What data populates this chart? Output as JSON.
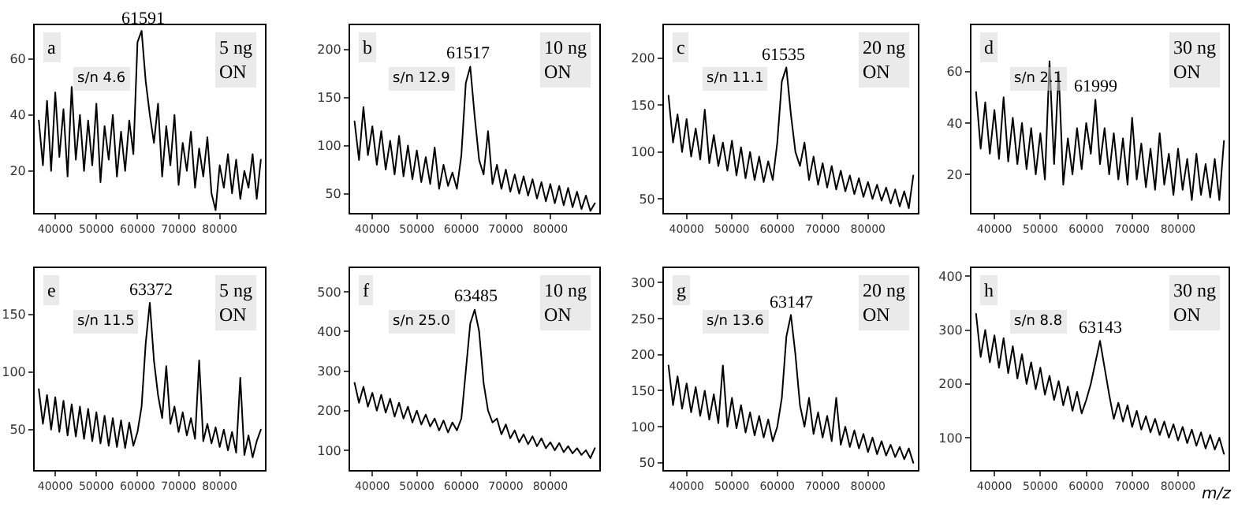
{
  "chart_data": [
    {
      "type": "line",
      "x": [
        36000,
        37000,
        38000,
        39000,
        40000,
        41000,
        42000,
        43000,
        44000,
        45000,
        46000,
        47000,
        48000,
        49000,
        50000,
        51000,
        52000,
        53000,
        54000,
        55000,
        56000,
        57000,
        58000,
        59000,
        60000,
        61000,
        62000,
        63000,
        64000,
        65000,
        66000,
        67000,
        68000,
        69000,
        70000,
        71000,
        72000,
        73000,
        74000,
        75000,
        76000,
        77000,
        78000,
        79000,
        80000,
        81000,
        82000,
        83000,
        84000,
        85000,
        86000,
        87000,
        88000,
        89000,
        90000
      ],
      "xlim": [
        35000,
        91000
      ],
      "xticks": [
        40000,
        50000,
        60000,
        70000,
        80000
      ],
      "ylim": [
        5,
        72
      ],
      "yticks": [
        20,
        40,
        60
      ],
      "series": [
        {
          "color": "#000000",
          "values": [
            38,
            22,
            45,
            20,
            48,
            25,
            42,
            18,
            50,
            24,
            40,
            20,
            38,
            22,
            44,
            16,
            36,
            24,
            40,
            18,
            34,
            20,
            38,
            26,
            66,
            70,
            52,
            40,
            30,
            44,
            18,
            36,
            22,
            40,
            15,
            30,
            20,
            34,
            14,
            28,
            18,
            32,
            12,
            6,
            22,
            14,
            26,
            12,
            24,
            10,
            20,
            14,
            26,
            10,
            24
          ]
        }
      ],
      "annotations": [
        "a",
        "s/n 4.6",
        "5 ng\nON",
        {
          "text": "61591",
          "x": 61591,
          "y": 70
        }
      ]
    },
    {
      "type": "line",
      "x": [
        36000,
        37000,
        38000,
        39000,
        40000,
        41000,
        42000,
        43000,
        44000,
        45000,
        46000,
        47000,
        48000,
        49000,
        50000,
        51000,
        52000,
        53000,
        54000,
        55000,
        56000,
        57000,
        58000,
        59000,
        60000,
        61000,
        62000,
        63000,
        64000,
        65000,
        66000,
        67000,
        68000,
        69000,
        70000,
        71000,
        72000,
        73000,
        74000,
        75000,
        76000,
        77000,
        78000,
        79000,
        80000,
        81000,
        82000,
        83000,
        84000,
        85000,
        86000,
        87000,
        88000,
        89000,
        90000
      ],
      "xlim": [
        35000,
        91000
      ],
      "xticks": [
        40000,
        50000,
        60000,
        70000,
        80000
      ],
      "ylim": [
        30,
        225
      ],
      "yticks": [
        50,
        100,
        150,
        200
      ],
      "series": [
        {
          "color": "#000000",
          "values": [
            125,
            85,
            140,
            90,
            120,
            80,
            115,
            75,
            105,
            70,
            110,
            68,
            100,
            65,
            95,
            62,
            88,
            60,
            98,
            55,
            80,
            58,
            72,
            55,
            90,
            165,
            182,
            130,
            85,
            70,
            115,
            60,
            80,
            55,
            75,
            52,
            70,
            50,
            68,
            48,
            65,
            45,
            62,
            42,
            60,
            40,
            58,
            38,
            56,
            36,
            52,
            34,
            48,
            32,
            40
          ]
        }
      ],
      "annotations": [
        "b",
        "s/n 12.9",
        "10 ng\nON",
        {
          "text": "61517",
          "x": 61517,
          "y": 182
        }
      ]
    },
    {
      "type": "line",
      "x": [
        36000,
        37000,
        38000,
        39000,
        40000,
        41000,
        42000,
        43000,
        44000,
        45000,
        46000,
        47000,
        48000,
        49000,
        50000,
        51000,
        52000,
        53000,
        54000,
        55000,
        56000,
        57000,
        58000,
        59000,
        60000,
        61000,
        62000,
        63000,
        64000,
        65000,
        66000,
        67000,
        68000,
        69000,
        70000,
        71000,
        72000,
        73000,
        74000,
        75000,
        76000,
        77000,
        78000,
        79000,
        80000,
        81000,
        82000,
        83000,
        84000,
        85000,
        86000,
        87000,
        88000,
        89000,
        90000
      ],
      "xlim": [
        35000,
        91000
      ],
      "xticks": [
        40000,
        50000,
        60000,
        70000,
        80000
      ],
      "ylim": [
        35,
        235
      ],
      "yticks": [
        50,
        100,
        150,
        200
      ],
      "series": [
        {
          "color": "#000000",
          "values": [
            160,
            110,
            140,
            100,
            135,
            95,
            125,
            92,
            145,
            88,
            118,
            85,
            110,
            80,
            112,
            75,
            105,
            72,
            100,
            70,
            95,
            68,
            90,
            70,
            110,
            175,
            190,
            140,
            100,
            85,
            110,
            70,
            95,
            65,
            88,
            62,
            85,
            60,
            80,
            58,
            75,
            55,
            72,
            52,
            68,
            50,
            65,
            48,
            62,
            45,
            60,
            42,
            58,
            40,
            75
          ]
        }
      ],
      "annotations": [
        "c",
        "s/n 11.1",
        "20 ng\nON",
        {
          "text": "61535",
          "x": 61535,
          "y": 190
        }
      ]
    },
    {
      "type": "line",
      "x": [
        36000,
        37000,
        38000,
        39000,
        40000,
        41000,
        42000,
        43000,
        44000,
        45000,
        46000,
        47000,
        48000,
        49000,
        50000,
        51000,
        52000,
        53000,
        54000,
        55000,
        56000,
        57000,
        58000,
        59000,
        60000,
        61000,
        61999,
        63000,
        64000,
        65000,
        66000,
        67000,
        68000,
        69000,
        70000,
        71000,
        72000,
        73000,
        74000,
        75000,
        76000,
        77000,
        78000,
        79000,
        80000,
        81000,
        82000,
        83000,
        84000,
        85000,
        86000,
        87000,
        88000,
        89000,
        90000
      ],
      "xlim": [
        35000,
        91000
      ],
      "xticks": [
        40000,
        50000,
        60000,
        70000,
        80000
      ],
      "ylim": [
        5,
        78
      ],
      "yticks": [
        20,
        40,
        60
      ],
      "series": [
        {
          "color": "#000000",
          "values": [
            52,
            30,
            48,
            28,
            45,
            26,
            50,
            25,
            42,
            24,
            40,
            22,
            38,
            20,
            36,
            18,
            64,
            24,
            60,
            16,
            34,
            20,
            38,
            22,
            40,
            28,
            49,
            24,
            38,
            20,
            36,
            18,
            34,
            16,
            42,
            18,
            32,
            15,
            30,
            14,
            36,
            16,
            28,
            12,
            30,
            14,
            26,
            10,
            28,
            12,
            24,
            11,
            26,
            10,
            33
          ]
        }
      ],
      "annotations": [
        "d",
        "s/n 2.1",
        "30 ng\nON",
        {
          "text": "61999",
          "x": 61999,
          "y": 49
        }
      ]
    },
    {
      "type": "line",
      "x": [
        36000,
        37000,
        38000,
        39000,
        40000,
        41000,
        42000,
        43000,
        44000,
        45000,
        46000,
        47000,
        48000,
        49000,
        50000,
        51000,
        52000,
        53000,
        54000,
        55000,
        56000,
        57000,
        58000,
        59000,
        60000,
        61000,
        62000,
        63000,
        64000,
        65000,
        66000,
        67000,
        68000,
        69000,
        70000,
        71000,
        72000,
        73000,
        74000,
        75000,
        76000,
        77000,
        78000,
        79000,
        80000,
        81000,
        82000,
        83000,
        84000,
        85000,
        86000,
        87000,
        88000,
        89000,
        90000
      ],
      "xlim": [
        35000,
        91000
      ],
      "xticks": [
        40000,
        50000,
        60000,
        70000,
        80000
      ],
      "ylim": [
        15,
        190
      ],
      "yticks": [
        50,
        100,
        150
      ],
      "series": [
        {
          "color": "#000000",
          "values": [
            85,
            55,
            80,
            50,
            78,
            48,
            75,
            45,
            72,
            44,
            70,
            42,
            68,
            40,
            65,
            38,
            62,
            36,
            60,
            35,
            58,
            34,
            56,
            36,
            48,
            70,
            125,
            160,
            110,
            80,
            60,
            105,
            55,
            70,
            48,
            65,
            45,
            60,
            42,
            110,
            40,
            55,
            38,
            52,
            35,
            50,
            32,
            48,
            30,
            95,
            28,
            45,
            26,
            40,
            50
          ]
        }
      ],
      "annotations": [
        "e",
        "s/n 11.5",
        "5 ng\nON",
        {
          "text": "63372",
          "x": 63372,
          "y": 160
        }
      ]
    },
    {
      "type": "line",
      "x": [
        36000,
        37000,
        38000,
        39000,
        40000,
        41000,
        42000,
        43000,
        44000,
        45000,
        46000,
        47000,
        48000,
        49000,
        50000,
        51000,
        52000,
        53000,
        54000,
        55000,
        56000,
        57000,
        58000,
        59000,
        60000,
        61000,
        62000,
        63000,
        64000,
        65000,
        66000,
        67000,
        68000,
        69000,
        70000,
        71000,
        72000,
        73000,
        74000,
        75000,
        76000,
        77000,
        78000,
        79000,
        80000,
        81000,
        82000,
        83000,
        84000,
        85000,
        86000,
        87000,
        88000,
        89000,
        90000
      ],
      "xlim": [
        35000,
        91000
      ],
      "xticks": [
        40000,
        50000,
        60000,
        70000,
        80000
      ],
      "ylim": [
        50,
        560
      ],
      "yticks": [
        100,
        200,
        300,
        400,
        500
      ],
      "series": [
        {
          "color": "#000000",
          "values": [
            270,
            220,
            260,
            210,
            245,
            200,
            240,
            195,
            230,
            185,
            220,
            180,
            210,
            170,
            200,
            165,
            190,
            160,
            180,
            150,
            175,
            145,
            170,
            150,
            180,
            300,
            420,
            455,
            400,
            270,
            200,
            170,
            180,
            140,
            165,
            130,
            150,
            120,
            140,
            115,
            135,
            110,
            130,
            105,
            120,
            100,
            118,
            95,
            110,
            92,
            105,
            88,
            100,
            80,
            105
          ]
        }
      ],
      "annotations": [
        "f",
        "s/n 25.0",
        "10 ng\nON",
        {
          "text": "63485",
          "x": 63485,
          "y": 455
        }
      ]
    },
    {
      "type": "line",
      "x": [
        36000,
        37000,
        38000,
        39000,
        40000,
        41000,
        42000,
        43000,
        44000,
        45000,
        46000,
        47000,
        48000,
        49000,
        50000,
        51000,
        52000,
        53000,
        54000,
        55000,
        56000,
        57000,
        58000,
        59000,
        60000,
        61000,
        62000,
        63000,
        64000,
        65000,
        66000,
        67000,
        68000,
        69000,
        70000,
        71000,
        72000,
        73000,
        74000,
        75000,
        76000,
        77000,
        78000,
        79000,
        80000,
        81000,
        82000,
        83000,
        84000,
        85000,
        86000,
        87000,
        88000,
        89000,
        90000
      ],
      "xlim": [
        35000,
        91000
      ],
      "xticks": [
        40000,
        50000,
        60000,
        70000,
        80000
      ],
      "ylim": [
        40,
        320
      ],
      "yticks": [
        50,
        100,
        150,
        200,
        250,
        300
      ],
      "series": [
        {
          "color": "#000000",
          "values": [
            185,
            130,
            170,
            125,
            160,
            120,
            155,
            115,
            150,
            110,
            145,
            105,
            185,
            100,
            140,
            98,
            130,
            92,
            120,
            88,
            115,
            85,
            110,
            80,
            100,
            140,
            225,
            255,
            200,
            130,
            100,
            140,
            90,
            120,
            85,
            115,
            80,
            140,
            75,
            100,
            72,
            95,
            70,
            90,
            65,
            85,
            62,
            80,
            60,
            75,
            58,
            72,
            55,
            70,
            50
          ]
        }
      ],
      "annotations": [
        "g",
        "s/n 13.6",
        "20 ng\nON",
        {
          "text": "63147",
          "x": 63147,
          "y": 255
        }
      ]
    },
    {
      "type": "line",
      "x": [
        36000,
        37000,
        38000,
        39000,
        40000,
        41000,
        42000,
        43000,
        44000,
        45000,
        46000,
        47000,
        48000,
        49000,
        50000,
        51000,
        52000,
        53000,
        54000,
        55000,
        56000,
        57000,
        58000,
        59000,
        60000,
        61000,
        62000,
        63000,
        64000,
        65000,
        66000,
        67000,
        68000,
        69000,
        70000,
        71000,
        72000,
        73000,
        74000,
        75000,
        76000,
        77000,
        78000,
        79000,
        80000,
        81000,
        82000,
        83000,
        84000,
        85000,
        86000,
        87000,
        88000,
        89000,
        90000
      ],
      "xlim": [
        35000,
        91000
      ],
      "xticks": [
        40000,
        50000,
        60000,
        70000,
        80000
      ],
      "ylim": [
        40,
        415
      ],
      "yticks": [
        100,
        200,
        300,
        400
      ],
      "xlabel": "m/z",
      "series": [
        {
          "color": "#000000",
          "values": [
            330,
            250,
            300,
            240,
            290,
            230,
            285,
            220,
            270,
            210,
            255,
            200,
            240,
            190,
            230,
            180,
            215,
            170,
            205,
            160,
            195,
            150,
            185,
            145,
            170,
            200,
            240,
            280,
            230,
            180,
            135,
            165,
            130,
            160,
            120,
            150,
            115,
            140,
            110,
            135,
            105,
            130,
            100,
            125,
            95,
            120,
            90,
            115,
            85,
            110,
            80,
            105,
            78,
            100,
            70
          ]
        }
      ],
      "annotations": [
        "h",
        "s/n 8.8",
        "30 ng\nON",
        {
          "text": "63143",
          "x": 63143,
          "y": 280
        }
      ]
    }
  ]
}
